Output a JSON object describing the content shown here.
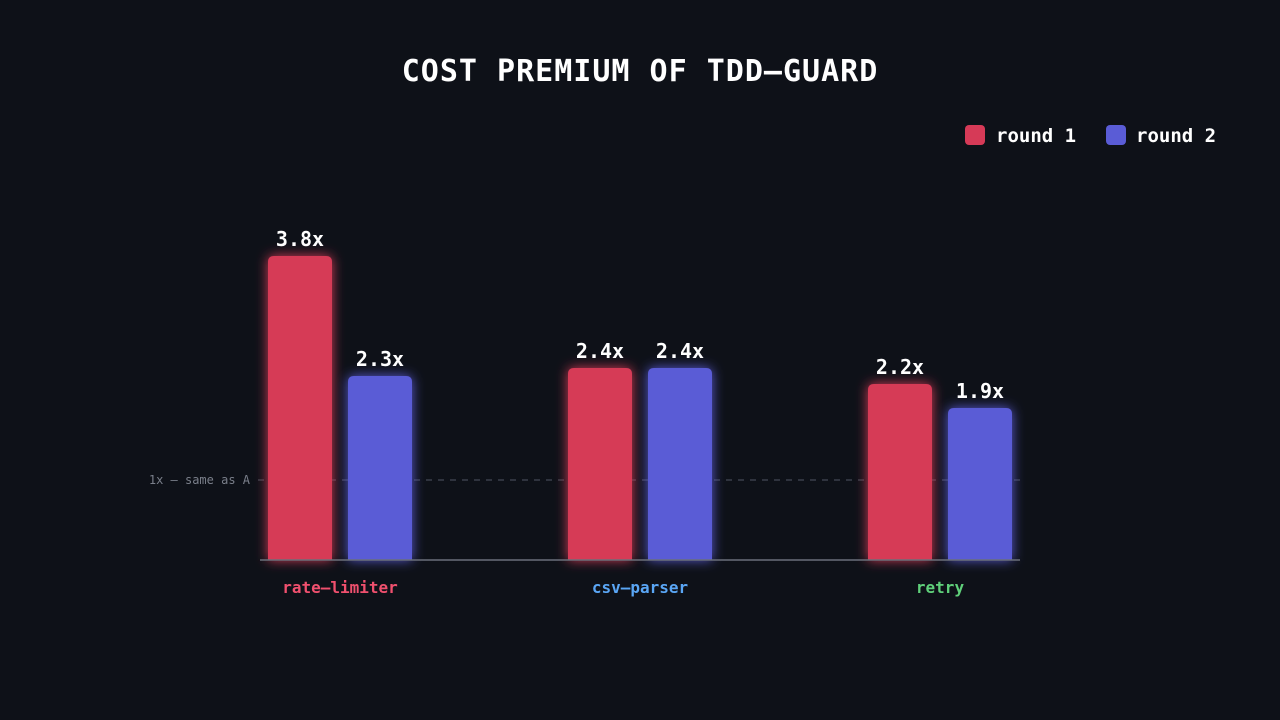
{
  "chart_data": {
    "type": "bar",
    "title": "COST PREMIUM OF TDD–GUARD",
    "categories": [
      "rate–limiter",
      "csv–parser",
      "retry"
    ],
    "category_colors": [
      "#f0506e",
      "#5aa6f5",
      "#5fd07a"
    ],
    "series": [
      {
        "name": "round 1",
        "color": "#d63a57",
        "values": [
          3.8,
          2.4,
          2.2
        ],
        "labels": [
          "3.8x",
          "2.4x",
          "2.2x"
        ]
      },
      {
        "name": "round 2",
        "color": "#5a5cd6",
        "values": [
          2.3,
          2.4,
          1.9
        ],
        "labels": [
          "2.3x",
          "2.4x",
          "1.9x"
        ]
      }
    ],
    "reference_line": {
      "value": 1,
      "label": "1x — same as A"
    },
    "ylim": [
      0,
      3.8
    ],
    "xlabel": "",
    "ylabel": "",
    "grid": false,
    "legend_position": "top-right"
  }
}
